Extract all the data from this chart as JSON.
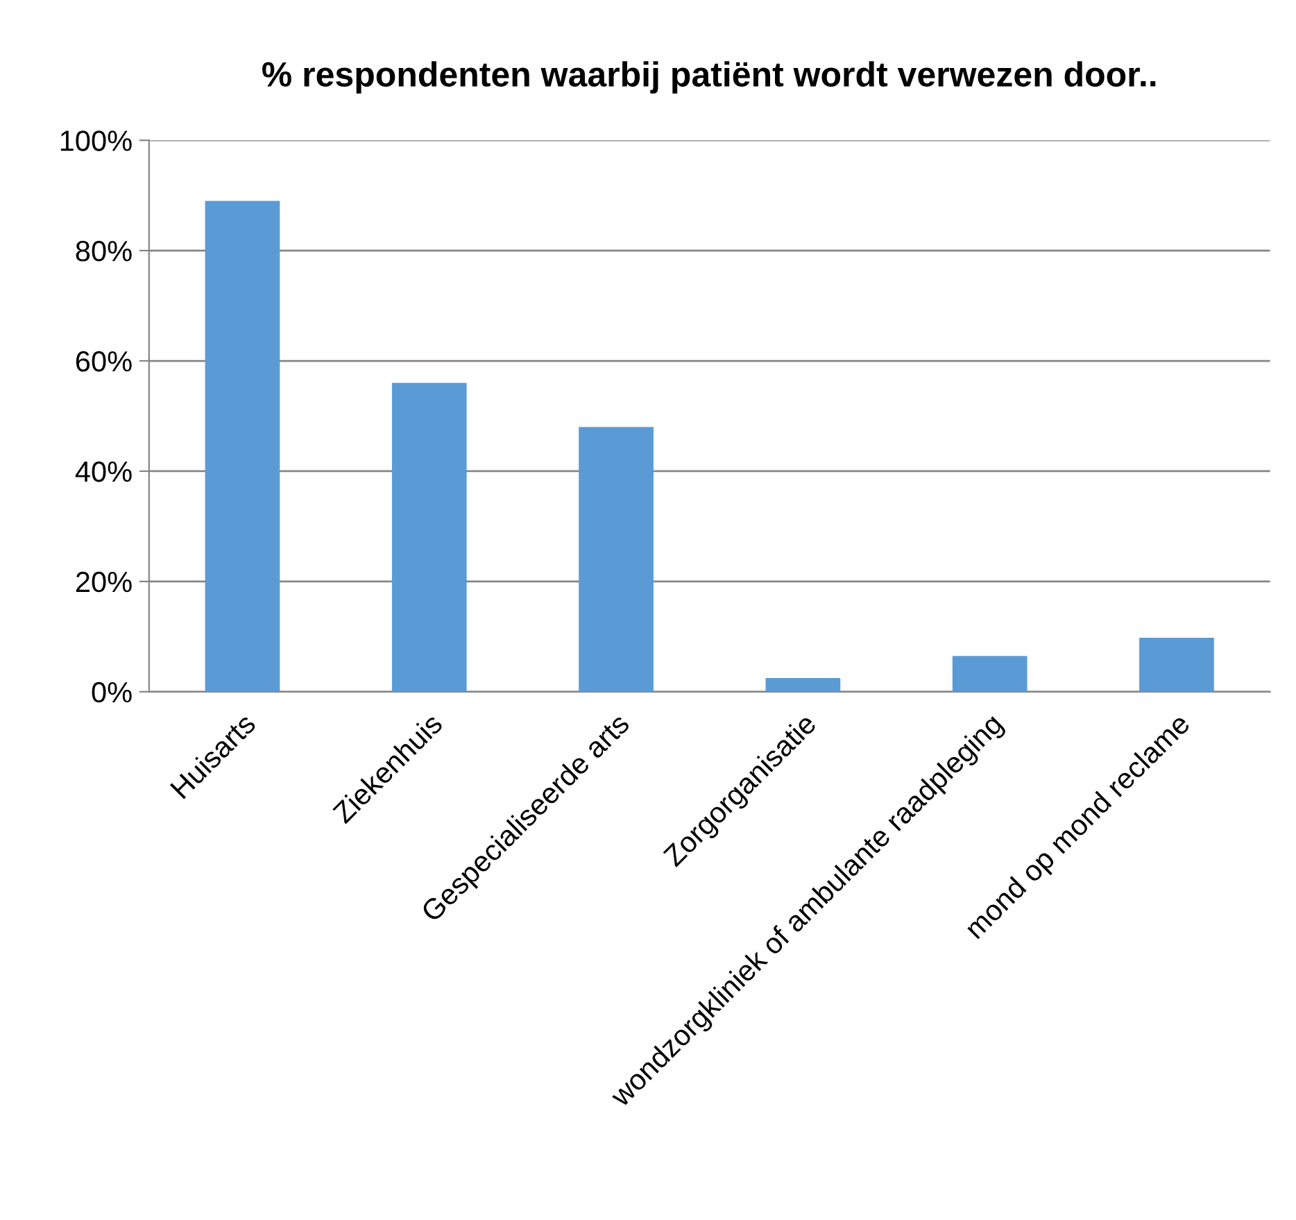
{
  "chart_data": {
    "type": "bar",
    "title": "% respondenten waarbij patiënt wordt verwezen door..",
    "categories": [
      "Huisarts",
      "Ziekenhuis",
      "Gespecialiseerde arts",
      "Zorgorganisatie",
      "wondzorgkliniek of ambulante raadpleging",
      "mond op mond reclame"
    ],
    "values": [
      0.89,
      0.56,
      0.48,
      0.025,
      0.065,
      0.098
    ],
    "color": "#5b9bd5",
    "ylim": [
      0,
      1
    ],
    "yticks": [
      {
        "value": 0,
        "label": "0%"
      },
      {
        "value": 0.2,
        "label": "20%"
      },
      {
        "value": 0.4,
        "label": "40%"
      },
      {
        "value": 0.6,
        "label": "60%"
      },
      {
        "value": 0.8,
        "label": "80%"
      },
      {
        "value": 1,
        "label": "100%"
      }
    ],
    "grid": "y",
    "legend": false
  }
}
